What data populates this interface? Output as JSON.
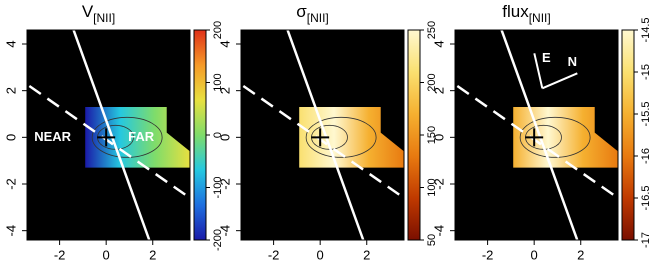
{
  "chart_data": [
    {
      "type": "map",
      "title": "V",
      "title_subscript": "[NII]",
      "xlim": [
        -3.4,
        3.6
      ],
      "xticks": [
        -2,
        0,
        2
      ],
      "ylim": [
        -4.4,
        4.6
      ],
      "yticks": [
        -4,
        -2,
        0,
        2,
        4
      ],
      "clim": [
        -200,
        200
      ],
      "cticks": [
        -200,
        -100,
        0,
        100,
        200
      ],
      "colormap": [
        "#1a1aa8",
        "#1e6fe0",
        "#25c8e0",
        "#7fdc6a",
        "#e8e040",
        "#f59a28",
        "#e03018"
      ],
      "annotations": [
        "NEAR",
        "FAR"
      ]
    },
    {
      "type": "map",
      "title": "σ",
      "title_subscript": "[NII]",
      "xlim": [
        -3.4,
        3.6
      ],
      "xticks": [
        -2,
        0,
        2
      ],
      "ylim": [
        -4.4,
        4.6
      ],
      "yticks": [
        -4,
        -2,
        0,
        2,
        4
      ],
      "clim": [
        50,
        250
      ],
      "cticks": [
        50,
        100,
        150,
        200,
        250
      ],
      "colormap": [
        "#7a0f00",
        "#c03a00",
        "#e87a10",
        "#f5b030",
        "#fae070",
        "#fff8d0"
      ]
    },
    {
      "type": "map",
      "title": "flux",
      "title_subscript": "[NII]",
      "xlim": [
        -3.4,
        3.6
      ],
      "xticks": [
        -2,
        0,
        2
      ],
      "ylim": [
        -4.4,
        4.6
      ],
      "yticks": [
        -4,
        -2,
        0,
        2,
        4
      ],
      "clim": [
        -17,
        -14.5
      ],
      "cticks": [
        -17,
        -16.5,
        -16,
        -15.5,
        -15,
        -14.5
      ],
      "colormap": [
        "#7a0f00",
        "#c03a00",
        "#e87a10",
        "#f5b030",
        "#fae070",
        "#fff8d0"
      ],
      "annotations": [
        "E",
        "N"
      ]
    }
  ]
}
